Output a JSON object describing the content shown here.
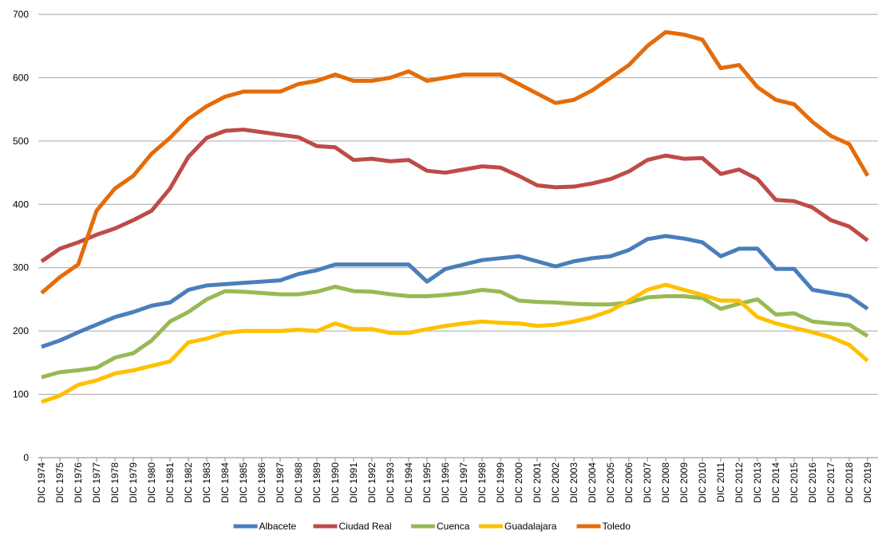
{
  "chart_data": {
    "type": "line",
    "categories": [
      "DIC 1974",
      "DIC 1975",
      "DIC 1976",
      "DIC 1977",
      "DIC 1978",
      "DIC 1979",
      "DIC 1980",
      "DIC 1981",
      "DIC 1982",
      "DIC 1983",
      "DIC 1984",
      "DIC 1985",
      "DIC 1986",
      "DIC 1987",
      "DIC 1988",
      "DIC 1989",
      "DIC 1990",
      "DIC 1991",
      "DIC 1992",
      "DIC 1993",
      "DIC 1994",
      "DIC 1995",
      "DIC 1996",
      "DIC 1997",
      "DIC 1998",
      "DIC 1999",
      "DIC 2000",
      "DIC 2001",
      "DIC 2002",
      "DIC 2003",
      "DIC 2004",
      "DIC 2005",
      "DIC 2006",
      "DIC 2007",
      "DIC 2008",
      "DIC 2009",
      "DIC 2010",
      "DIC 2011",
      "DIC 2012",
      "DIC 2013",
      "DIC 2014",
      "DIC 2015",
      "DIC 2016",
      "DIC 2017",
      "DIC 2018",
      "DIC 2019"
    ],
    "series": [
      {
        "name": "Albacete",
        "color": "#4a7ebb",
        "values": [
          175,
          185,
          198,
          210,
          222,
          230,
          240,
          245,
          265,
          272,
          274,
          276,
          278,
          280,
          290,
          296,
          305,
          305,
          305,
          305,
          305,
          278,
          298,
          305,
          312,
          315,
          318,
          310,
          302,
          310,
          315,
          318,
          328,
          345,
          350,
          346,
          340,
          318,
          330,
          330,
          298,
          298,
          265,
          260,
          255,
          235
        ]
      },
      {
        "name": "Ciudad Real",
        "color": "#be4b48",
        "values": [
          310,
          330,
          340,
          352,
          362,
          375,
          390,
          425,
          475,
          505,
          516,
          518,
          514,
          510,
          506,
          492,
          490,
          470,
          472,
          468,
          470,
          453,
          450,
          455,
          460,
          458,
          445,
          430,
          427,
          428,
          433,
          440,
          452,
          470,
          477,
          472,
          473,
          448,
          455,
          440,
          407,
          405,
          395,
          375,
          365,
          343
        ]
      },
      {
        "name": "Cuenca",
        "color": "#98b954",
        "values": [
          127,
          135,
          138,
          142,
          158,
          165,
          185,
          215,
          230,
          250,
          263,
          262,
          260,
          258,
          258,
          262,
          270,
          263,
          262,
          258,
          255,
          255,
          257,
          260,
          265,
          262,
          248,
          246,
          245,
          243,
          242,
          242,
          245,
          253,
          255,
          255,
          252,
          235,
          243,
          250,
          226,
          228,
          215,
          212,
          210,
          192
        ]
      },
      {
        "name": "Guadalajara",
        "color": "#ffc000",
        "values": [
          88,
          98,
          115,
          122,
          133,
          138,
          145,
          152,
          182,
          188,
          197,
          200,
          200,
          200,
          202,
          200,
          212,
          203,
          203,
          197,
          197,
          203,
          208,
          212,
          215,
          213,
          212,
          208,
          210,
          215,
          222,
          232,
          248,
          265,
          273,
          265,
          257,
          248,
          248,
          222,
          212,
          205,
          198,
          190,
          178,
          153
        ]
      },
      {
        "name": "Toledo",
        "color": "#e46c0a",
        "values": [
          260,
          285,
          305,
          390,
          425,
          445,
          480,
          505,
          535,
          555,
          570,
          578,
          578,
          578,
          590,
          595,
          605,
          595,
          595,
          600,
          610,
          595,
          600,
          605,
          605,
          605,
          590,
          575,
          560,
          565,
          580,
          600,
          620,
          650,
          672,
          668,
          660,
          615,
          620,
          585,
          565,
          558,
          530,
          508,
          495,
          445
        ]
      }
    ],
    "ylim": [
      0,
      700
    ],
    "yticks": [
      0,
      100,
      200,
      300,
      400,
      500,
      600,
      700
    ],
    "grid": true,
    "legend": "bottom"
  }
}
